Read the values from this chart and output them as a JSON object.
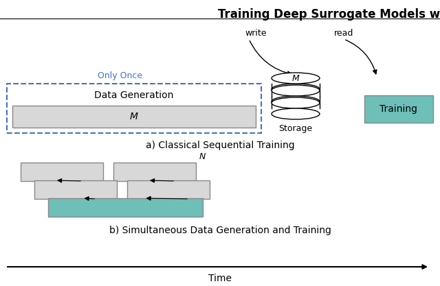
{
  "title": "Training Deep Surrogate Models w",
  "title_fontsize": 12,
  "teal_color": "#6DBFB8",
  "gray_color": "#D8D8D8",
  "gray_border": "#888888",
  "blue_dashed": "#4472C4",
  "background": "#ffffff",
  "section_a_label": "a) Classical Sequential Training",
  "section_b_label": "b) Simultaneous Data Generation and Training",
  "time_label": "Time",
  "only_once_label": "Only Once",
  "data_gen_label": "Data Generation",
  "M_label": "M",
  "storage_label": "Storage",
  "training_label": "Training",
  "write_label": "write",
  "read_label": "read",
  "N_label": "N"
}
